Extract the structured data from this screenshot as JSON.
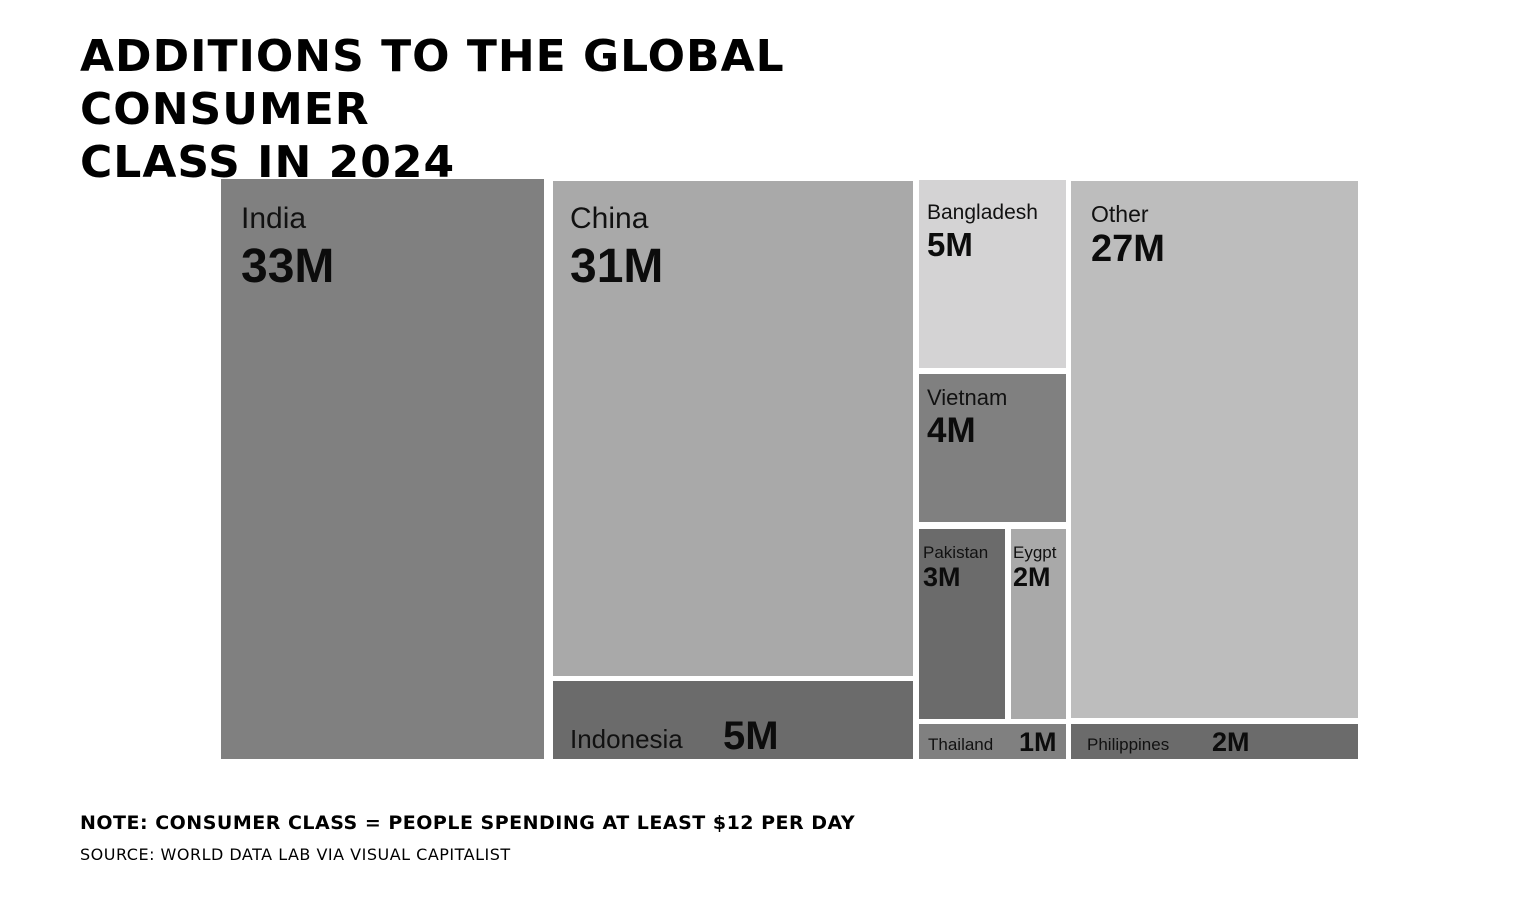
{
  "title_lines": [
    "Additions to the Global Consumer",
    "Class in 2024"
  ],
  "note": "Note: Consumer class = people spending at least $12 per day",
  "source": "Source: World Data Lab via Visual Capitalist",
  "chart_data": {
    "type": "treemap",
    "title": "Additions to the Global Consumer Class in 2024",
    "unit": "M",
    "items": [
      {
        "name": "India",
        "value": 33,
        "label": "33M",
        "color": "#808080"
      },
      {
        "name": "China",
        "value": 31,
        "label": "31M",
        "color": "#a9a9a9"
      },
      {
        "name": "Indonesia",
        "value": 5,
        "label": "5M",
        "color": "#6b6b6b"
      },
      {
        "name": "Bangladesh",
        "value": 5,
        "label": "5M",
        "color": "#d4d3d4"
      },
      {
        "name": "Vietnam",
        "value": 4,
        "label": "4M",
        "color": "#808080"
      },
      {
        "name": "Pakistan",
        "value": 3,
        "label": "3M",
        "color": "#6b6b6b"
      },
      {
        "name": "Eygpt",
        "value": 2,
        "label": "2M",
        "color": "#a9a9a9"
      },
      {
        "name": "Thailand",
        "value": 1,
        "label": "1M",
        "color": "#808080"
      },
      {
        "name": "Other",
        "value": 27,
        "label": "27M",
        "color": "#bdbdbd"
      },
      {
        "name": "Philippines",
        "value": 2,
        "label": "2M",
        "color": "#6b6b6b"
      }
    ]
  }
}
